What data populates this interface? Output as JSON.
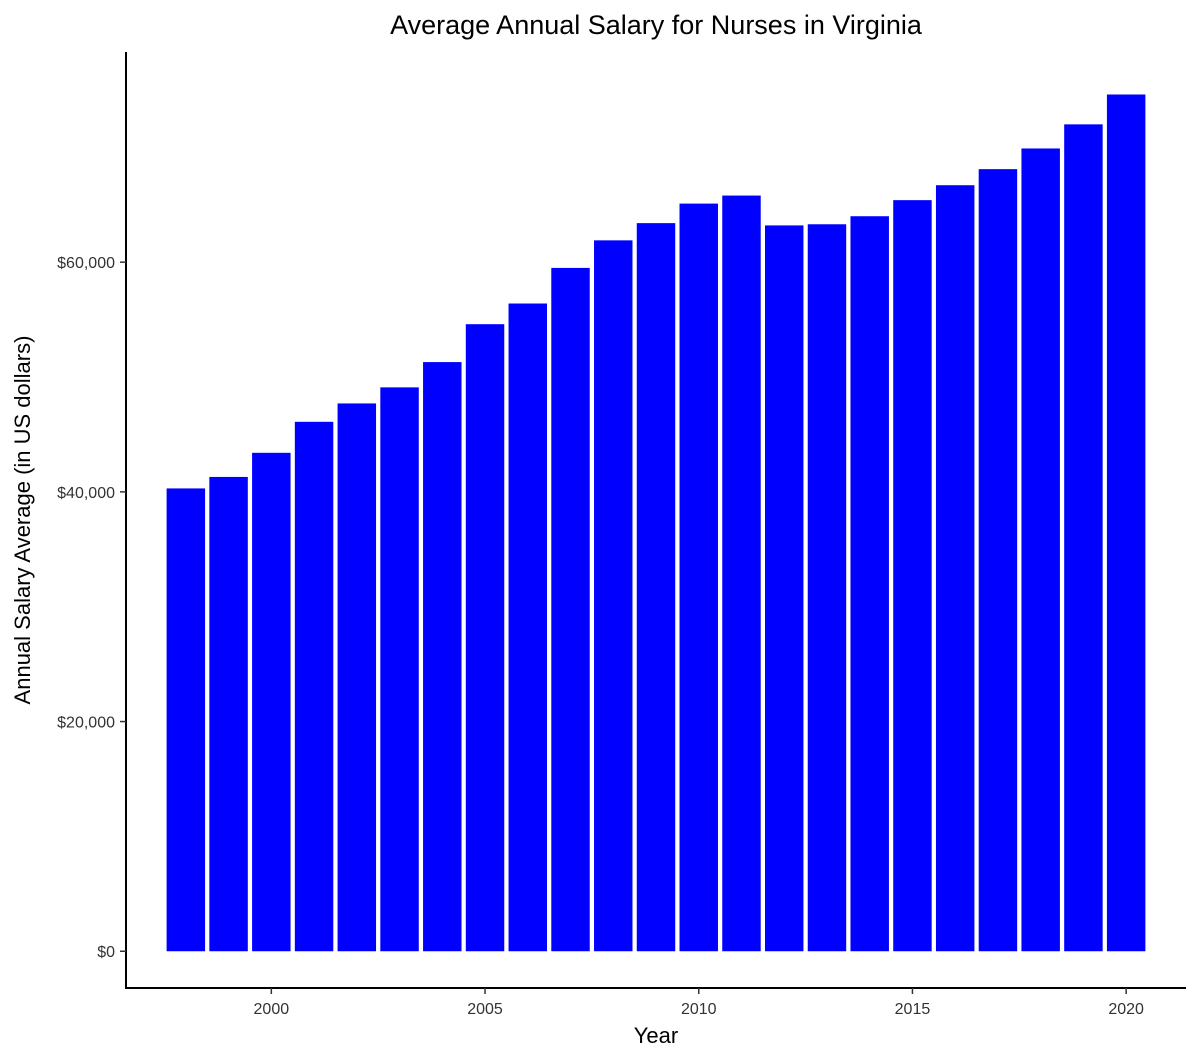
{
  "chart_data": {
    "type": "bar",
    "title": "Average Annual Salary for Nurses in Virginia",
    "xlabel": "Year",
    "ylabel": "Annual Salary Average (in US dollars)",
    "x": [
      1998,
      1999,
      2000,
      2001,
      2002,
      2003,
      2004,
      2005,
      2006,
      2007,
      2008,
      2009,
      2010,
      2011,
      2012,
      2013,
      2014,
      2015,
      2016,
      2017,
      2018,
      2019,
      2020
    ],
    "values": [
      40300,
      41300,
      43400,
      46100,
      47700,
      49100,
      51300,
      54600,
      56400,
      59500,
      61900,
      63400,
      65100,
      65800,
      63200,
      63300,
      64000,
      65400,
      66700,
      68100,
      69900,
      72000,
      74600
    ],
    "xticks": [
      2000,
      2005,
      2010,
      2015,
      2020
    ],
    "xtick_labels": [
      "2000",
      "2005",
      "2010",
      "2015",
      "2020"
    ],
    "yticks": [
      0,
      20000,
      40000,
      60000
    ],
    "ytick_labels": [
      "$0",
      "$20,000",
      "$40,000",
      "$60,000"
    ],
    "ylim": [
      -3200,
      78300
    ],
    "xlim": [
      1996.6,
      2021.4
    ],
    "bar_color": "#0000ff",
    "grid": false,
    "legend": "none"
  }
}
